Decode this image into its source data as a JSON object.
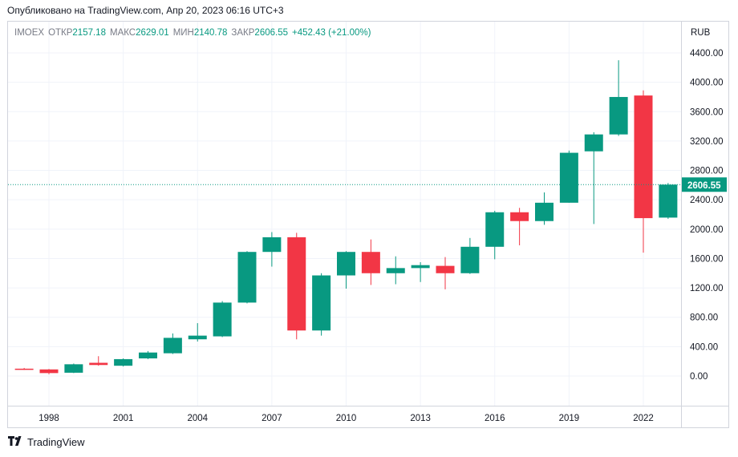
{
  "published": "Опубликовано на TradingView.com, Апр 20, 2023 06:16 UTC+3",
  "legend": {
    "symbol": "IMOEX",
    "open_label": "ОТКР",
    "open": "2157.18",
    "high_label": "МАКС",
    "high": "2629.01",
    "low_label": "МИН",
    "low": "2140.78",
    "close_label": "ЗАКР",
    "close": "2606.55",
    "change": "+452.43 (+21.00%)"
  },
  "brand": "TradingView",
  "colors": {
    "up": "#089981",
    "down": "#f23645",
    "grid": "#f0f3fa",
    "price_tag": "#089981"
  },
  "chart_data": {
    "type": "candlestick",
    "unit": "RUB",
    "last_price": "2606.55",
    "ylim": [
      -300,
      4700
    ],
    "y_ticks": [
      0,
      400,
      800,
      1200,
      1600,
      2000,
      2400,
      2800,
      3200,
      3600,
      4000,
      4400
    ],
    "y_tick_labels": [
      "0.00",
      "400.00",
      "800.00",
      "1200.00",
      "1600.00",
      "2000.00",
      "2400.00",
      "2800.00",
      "3200.00",
      "3600.00",
      "4000.00",
      "4400.00"
    ],
    "x_ticks": [
      "1998",
      "2001",
      "2004",
      "2007",
      "2010",
      "2013",
      "2016",
      "2019",
      "2022"
    ],
    "candles": [
      {
        "year": 1997,
        "open": 100,
        "high": 110,
        "low": 85,
        "close": 92
      },
      {
        "year": 1998,
        "open": 90,
        "high": 95,
        "low": 25,
        "close": 40
      },
      {
        "year": 1999,
        "open": 45,
        "high": 170,
        "low": 40,
        "close": 160
      },
      {
        "year": 2000,
        "open": 180,
        "high": 270,
        "low": 140,
        "close": 150
      },
      {
        "year": 2001,
        "open": 140,
        "high": 240,
        "low": 130,
        "close": 230
      },
      {
        "year": 2002,
        "open": 240,
        "high": 340,
        "low": 230,
        "close": 320
      },
      {
        "year": 2003,
        "open": 310,
        "high": 580,
        "low": 300,
        "close": 520
      },
      {
        "year": 2004,
        "open": 500,
        "high": 720,
        "low": 470,
        "close": 550
      },
      {
        "year": 2005,
        "open": 540,
        "high": 1020,
        "low": 530,
        "close": 1000
      },
      {
        "year": 2006,
        "open": 1000,
        "high": 1700,
        "low": 990,
        "close": 1690
      },
      {
        "year": 2007,
        "open": 1690,
        "high": 1960,
        "low": 1490,
        "close": 1890
      },
      {
        "year": 2008,
        "open": 1890,
        "high": 1950,
        "low": 500,
        "close": 620
      },
      {
        "year": 2009,
        "open": 620,
        "high": 1400,
        "low": 550,
        "close": 1370
      },
      {
        "year": 2010,
        "open": 1370,
        "high": 1700,
        "low": 1190,
        "close": 1690
      },
      {
        "year": 2011,
        "open": 1690,
        "high": 1860,
        "low": 1240,
        "close": 1400
      },
      {
        "year": 2012,
        "open": 1400,
        "high": 1630,
        "low": 1250,
        "close": 1470
      },
      {
        "year": 2013,
        "open": 1470,
        "high": 1550,
        "low": 1280,
        "close": 1510
      },
      {
        "year": 2014,
        "open": 1500,
        "high": 1620,
        "low": 1180,
        "close": 1400
      },
      {
        "year": 2015,
        "open": 1400,
        "high": 1880,
        "low": 1390,
        "close": 1760
      },
      {
        "year": 2016,
        "open": 1760,
        "high": 2250,
        "low": 1590,
        "close": 2230
      },
      {
        "year": 2017,
        "open": 2230,
        "high": 2290,
        "low": 1780,
        "close": 2110
      },
      {
        "year": 2018,
        "open": 2110,
        "high": 2500,
        "low": 2060,
        "close": 2360
      },
      {
        "year": 2019,
        "open": 2360,
        "high": 3070,
        "low": 2360,
        "close": 3040
      },
      {
        "year": 2020,
        "open": 3060,
        "high": 3320,
        "low": 2070,
        "close": 3290
      },
      {
        "year": 2021,
        "open": 3290,
        "high": 4300,
        "low": 3270,
        "close": 3800
      },
      {
        "year": 2022,
        "open": 3820,
        "high": 3890,
        "low": 1680,
        "close": 2150
      },
      {
        "year": 2023,
        "open": 2157.18,
        "high": 2629.01,
        "low": 2140.78,
        "close": 2606.55
      }
    ]
  }
}
